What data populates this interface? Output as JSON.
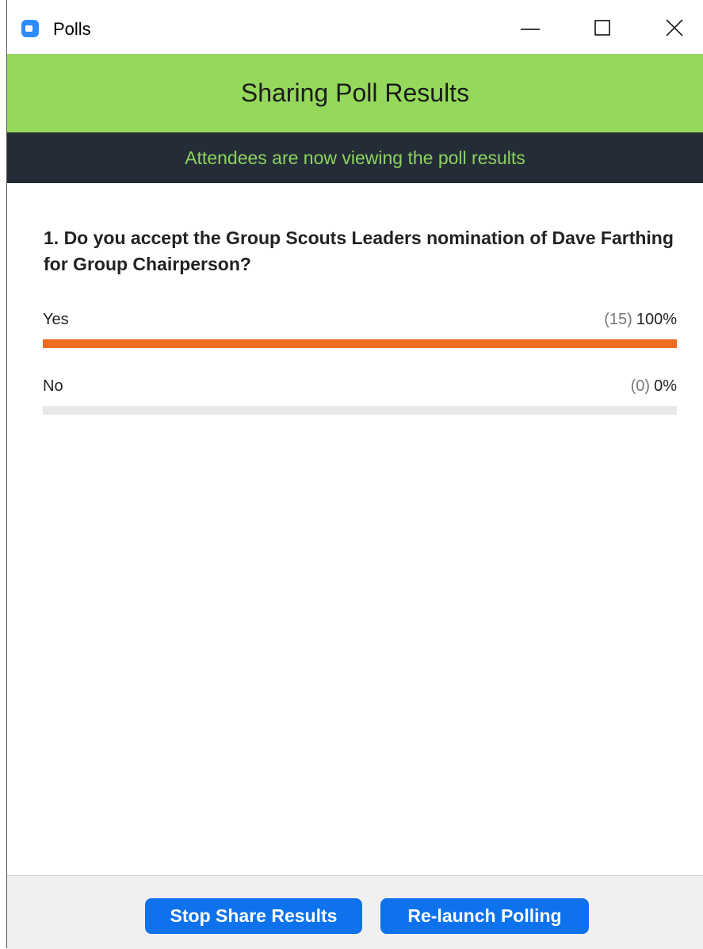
{
  "window": {
    "title": "Polls"
  },
  "header": {
    "title": "Sharing Poll Results",
    "status": "Attendees are now viewing the poll results"
  },
  "poll": {
    "question": "1. Do you accept the Group Scouts Leaders nomination  of Dave Farthing for Group Chairperson?",
    "answers": [
      {
        "label": "Yes",
        "count": "(15)",
        "percent": 100,
        "percent_label": "100%"
      },
      {
        "label": "No",
        "count": "(0)",
        "percent": 0,
        "percent_label": "0%"
      }
    ]
  },
  "buttons": [
    "Stop Share Results",
    "Re-launch Polling"
  ]
}
